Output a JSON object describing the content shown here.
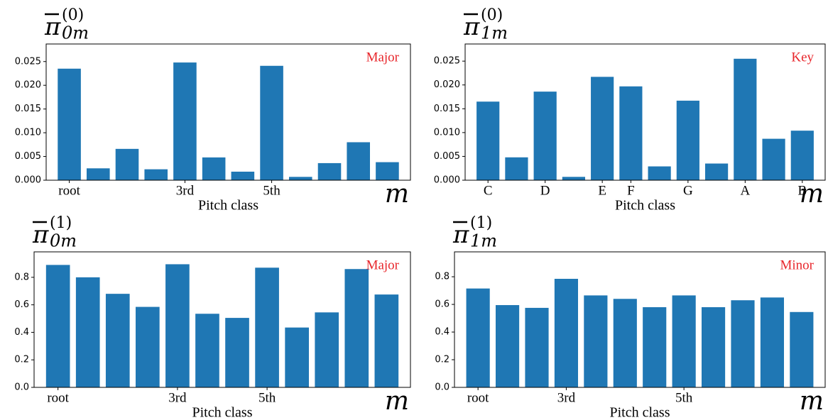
{
  "chart_data": [
    {
      "type": "bar",
      "title_symbol": "π",
      "title_superscript": "(0)",
      "title_subscript": "0m",
      "annotation": "Major",
      "annotation_color": "#e8262b",
      "xlabel": "Pitch class",
      "axis_symbol": "m",
      "categories": [
        "root",
        null,
        null,
        null,
        "3rd",
        null,
        null,
        "5th",
        null,
        null,
        null,
        null
      ],
      "values": [
        0.0235,
        0.0025,
        0.0066,
        0.0023,
        0.0248,
        0.0048,
        0.0018,
        0.0241,
        0.0007,
        0.0036,
        0.008,
        0.0038
      ],
      "color": "#1f77b4",
      "ylim": [
        0,
        0.0287
      ],
      "yticks": [
        {
          "value": 0,
          "label": "0.000"
        },
        {
          "value": 0.005,
          "label": "0.005"
        },
        {
          "value": 0.01,
          "label": "0.010"
        },
        {
          "value": 0.015,
          "label": "0.015"
        },
        {
          "value": 0.02,
          "label": "0.020"
        },
        {
          "value": 0.025,
          "label": "0.025"
        }
      ]
    },
    {
      "type": "bar",
      "title_symbol": "π",
      "title_superscript": "(0)",
      "title_subscript": "1m",
      "annotation": "Key",
      "annotation_color": "#e8262b",
      "xlabel": "Pitch class",
      "axis_symbol": "m",
      "categories": [
        "C",
        null,
        "D",
        null,
        "E",
        "F",
        null,
        "G",
        null,
        "A",
        null,
        "B"
      ],
      "values": [
        0.0165,
        0.0048,
        0.0186,
        0.0007,
        0.0217,
        0.0197,
        0.0029,
        0.0167,
        0.0035,
        0.0255,
        0.0087,
        0.0104
      ],
      "color": "#1f77b4",
      "ylim": [
        0,
        0.0286
      ],
      "yticks": [
        {
          "value": 0,
          "label": "0.000"
        },
        {
          "value": 0.005,
          "label": "0.005"
        },
        {
          "value": 0.01,
          "label": "0.010"
        },
        {
          "value": 0.015,
          "label": "0.015"
        },
        {
          "value": 0.02,
          "label": "0.020"
        },
        {
          "value": 0.025,
          "label": "0.025"
        }
      ]
    },
    {
      "type": "bar",
      "title_symbol": "π",
      "title_superscript": "(1)",
      "title_subscript": "0m",
      "annotation": "Major",
      "annotation_color": "#e8262b",
      "xlabel": "Pitch class",
      "axis_symbol": "m",
      "categories": [
        "root",
        null,
        null,
        null,
        "3rd",
        null,
        null,
        "5th",
        null,
        null,
        null,
        null
      ],
      "values": [
        0.89,
        0.8,
        0.68,
        0.585,
        0.895,
        0.535,
        0.505,
        0.87,
        0.435,
        0.545,
        0.86,
        0.675
      ],
      "color": "#1f77b4",
      "ylim": [
        0,
        0.985
      ],
      "yticks": [
        {
          "value": 0,
          "label": "0.0"
        },
        0.2,
        0.4,
        0.6,
        0.8
      ]
    },
    {
      "type": "bar",
      "title_symbol": "π",
      "title_superscript": "(1)",
      "title_subscript": "1m",
      "annotation": "Minor",
      "annotation_color": "#e8262b",
      "xlabel": "Pitch class",
      "axis_symbol": "m",
      "categories": [
        "root",
        null,
        null,
        "3rd",
        null,
        null,
        null,
        "5th",
        null,
        null,
        null,
        null
      ],
      "values": [
        0.715,
        0.595,
        0.575,
        0.785,
        0.665,
        0.64,
        0.58,
        0.665,
        0.58,
        0.63,
        0.65,
        0.545
      ],
      "color": "#1f77b4",
      "ylim": [
        0,
        0.98
      ],
      "yticks": [
        {
          "value": 0,
          "label": "0.0"
        },
        0.2,
        0.4,
        0.6,
        0.8
      ]
    }
  ]
}
